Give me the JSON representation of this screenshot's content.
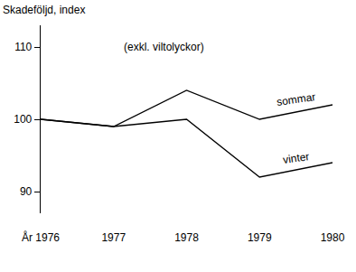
{
  "chart_data": {
    "type": "line",
    "ylabel": "Skadeföljd, index",
    "annotations": [
      "(exkl. viltolyckor)"
    ],
    "x": [
      1976,
      1977,
      1978,
      1979,
      1980
    ],
    "series": [
      {
        "name": "sommar",
        "color": "#000000",
        "values": [
          100,
          99,
          104,
          100,
          102
        ]
      },
      {
        "name": "vinter",
        "color": "#000000",
        "values": [
          100,
          99,
          100,
          92,
          94
        ]
      }
    ],
    "xlim": [
      1976,
      1980
    ],
    "xticks": [
      {
        "value": 1976,
        "label": "År 1976"
      },
      1977,
      1978,
      1979,
      1980
    ],
    "ylim": [
      87,
      113
    ],
    "yticks": [
      90,
      100,
      110
    ],
    "grid": false
  }
}
